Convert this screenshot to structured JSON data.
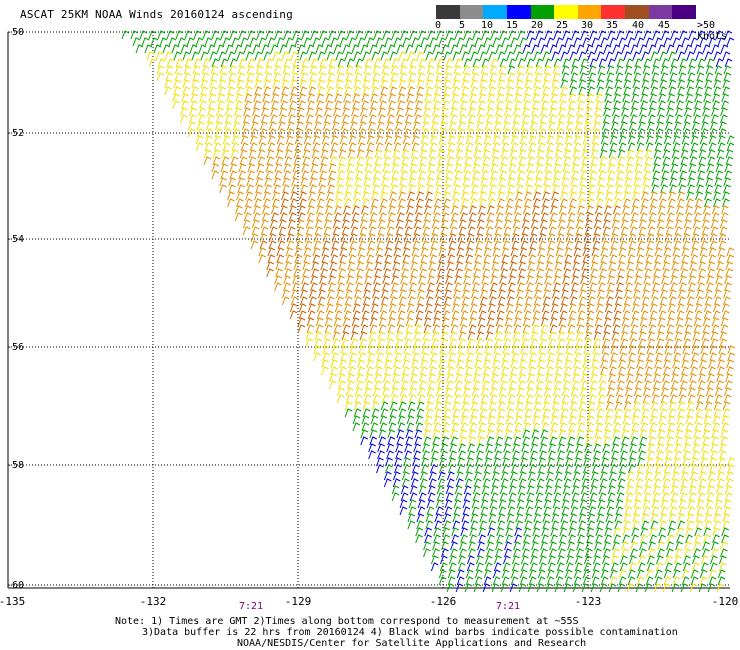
{
  "title": "ASCAT 25KM NOAA Winds 20160124 ascending",
  "legend": {
    "labels": [
      "0",
      "5",
      "10",
      "15",
      "20",
      "25",
      "30",
      "35",
      "40",
      "45",
      ">50 knots"
    ],
    "colors": [
      "#3a3a3a",
      "#8c8c8c",
      "#00aaff",
      "#0000ff",
      "#00a000",
      "#ffff00",
      "#ffa500",
      "#ff3030",
      "#a05020",
      "#7a3aa0",
      "#4b0082"
    ]
  },
  "latitude_labels": [
    "-50",
    "-52",
    "-54",
    "-56",
    "-58",
    "-60"
  ],
  "longitude_labels": [
    "-135",
    "-132",
    "-129",
    "-126",
    "-123",
    "-120"
  ],
  "time_labels": [
    "7:21",
    "7:21"
  ],
  "notes": {
    "line1": "Note: 1) Times are GMT 2)Times along bottom correspond to measurement at ~55S",
    "line2": "3)Data buffer is 22 hrs from 20160124 4) Black wind barbs indicate possible contamination",
    "line3": "NOAA/NESDIS/Center for Satellite Applications and Research"
  },
  "barb_colors": {
    "blue": "#0000e0",
    "green": "#00a000",
    "yellow": "#f0e000",
    "orange": "#e09000",
    "darkorange": "#c86000"
  }
}
